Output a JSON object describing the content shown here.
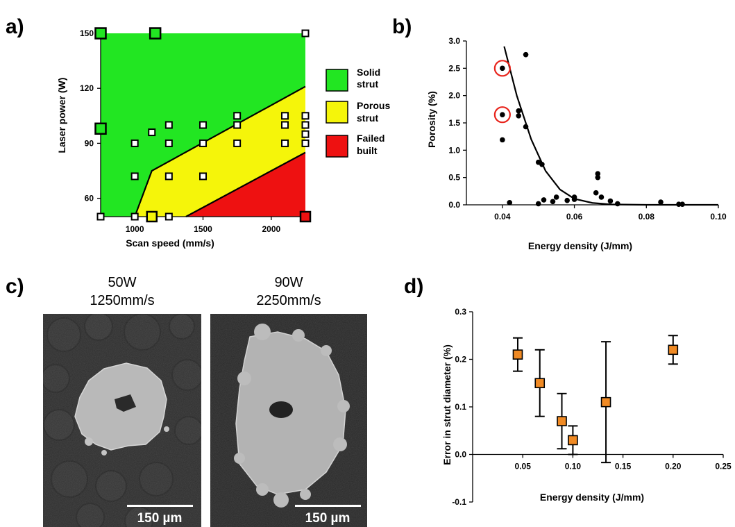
{
  "panels": {
    "a": "a)",
    "b": "b)",
    "c": "c)",
    "d": "d)"
  },
  "colors": {
    "solid": "#22e622",
    "porous": "#f5f50a",
    "failed": "#ee1111",
    "marker_d": "#f08a24",
    "highlight": "#e8231b"
  },
  "chart_data": [
    {
      "panel": "a",
      "type": "scatter",
      "xlabel": "Scan speed (mm/s)",
      "ylabel": "Laser power (W)",
      "xlim": [
        750,
        2250
      ],
      "ylim": [
        50,
        150
      ],
      "xticks": [
        1000,
        1500,
        2000
      ],
      "yticks": [
        60,
        90,
        120,
        150
      ],
      "regions": [
        {
          "name": "Solid strut",
          "color": "#22e622"
        },
        {
          "name": "Porous strut",
          "color": "#f5f50a"
        },
        {
          "name": "Failed built",
          "color": "#ee1111"
        }
      ],
      "legend": [
        {
          "label_line1": "Solid",
          "label_line2": "strut",
          "color": "#22e622"
        },
        {
          "label_line1": "Porous",
          "label_line2": "strut",
          "color": "#f5f50a"
        },
        {
          "label_line1": "Failed",
          "label_line2": "built",
          "color": "#ee1111"
        }
      ],
      "boundaries": {
        "solid_porous": [
          [
            1000,
            50
          ],
          [
            1125,
            75
          ],
          [
            2250,
            121
          ]
        ],
        "porous_failed": [
          [
            1375,
            50
          ],
          [
            2250,
            85
          ]
        ]
      },
      "points": [
        {
          "x": 750,
          "y": 150,
          "kind": "solid"
        },
        {
          "x": 1150,
          "y": 150,
          "kind": "solid"
        },
        {
          "x": 750,
          "y": 98,
          "kind": "solid"
        },
        {
          "x": 2250,
          "y": 150,
          "kind": "open"
        },
        {
          "x": 750,
          "y": 50,
          "kind": "open"
        },
        {
          "x": 1000,
          "y": 90,
          "kind": "open"
        },
        {
          "x": 1000,
          "y": 72,
          "kind": "open"
        },
        {
          "x": 1000,
          "y": 50,
          "kind": "open"
        },
        {
          "x": 1125,
          "y": 96,
          "kind": "open"
        },
        {
          "x": 1250,
          "y": 100,
          "kind": "open"
        },
        {
          "x": 1250,
          "y": 90,
          "kind": "open"
        },
        {
          "x": 1250,
          "y": 72,
          "kind": "open"
        },
        {
          "x": 1250,
          "y": 50,
          "kind": "open"
        },
        {
          "x": 1125,
          "y": 50,
          "kind": "porous"
        },
        {
          "x": 1500,
          "y": 100,
          "kind": "open"
        },
        {
          "x": 1500,
          "y": 90,
          "kind": "open"
        },
        {
          "x": 1500,
          "y": 72,
          "kind": "open"
        },
        {
          "x": 1750,
          "y": 105,
          "kind": "open"
        },
        {
          "x": 1750,
          "y": 100,
          "kind": "open"
        },
        {
          "x": 1750,
          "y": 90,
          "kind": "open"
        },
        {
          "x": 2100,
          "y": 105,
          "kind": "open"
        },
        {
          "x": 2100,
          "y": 100,
          "kind": "open"
        },
        {
          "x": 2100,
          "y": 90,
          "kind": "open"
        },
        {
          "x": 2250,
          "y": 105,
          "kind": "open"
        },
        {
          "x": 2250,
          "y": 100,
          "kind": "open"
        },
        {
          "x": 2250,
          "y": 95,
          "kind": "open"
        },
        {
          "x": 2250,
          "y": 90,
          "kind": "open"
        },
        {
          "x": 2250,
          "y": 50,
          "kind": "failed"
        }
      ]
    },
    {
      "panel": "b",
      "type": "scatter",
      "xlabel": "Energy density (J/mm)",
      "ylabel": "Porosity (%)",
      "xlim": [
        0.03,
        0.1
      ],
      "ylim": [
        0,
        3.0
      ],
      "xticks": [
        0.04,
        0.06,
        0.08,
        0.1
      ],
      "xticklabels": [
        "0.04",
        "0.06",
        "0.08",
        "0.10"
      ],
      "yticks": [
        0,
        0.5,
        1.0,
        1.5,
        2.0,
        2.5,
        3.0
      ],
      "yticklabels": [
        "0.0",
        "0.5",
        "1.0",
        "1.5",
        "2.0",
        "2.5",
        "3.0"
      ],
      "points": [
        {
          "x": 0.04,
          "y": 2.5,
          "highlight": true
        },
        {
          "x": 0.04,
          "y": 1.65,
          "highlight": true
        },
        {
          "x": 0.04,
          "y": 1.19
        },
        {
          "x": 0.042,
          "y": 0.04
        },
        {
          "x": 0.0445,
          "y": 1.72
        },
        {
          "x": 0.0445,
          "y": 1.63
        },
        {
          "x": 0.0465,
          "y": 2.75
        },
        {
          "x": 0.0465,
          "y": 1.43
        },
        {
          "x": 0.05,
          "y": 0.78
        },
        {
          "x": 0.051,
          "y": 0.74
        },
        {
          "x": 0.05,
          "y": 0.02
        },
        {
          "x": 0.0515,
          "y": 0.09
        },
        {
          "x": 0.054,
          "y": 0.06
        },
        {
          "x": 0.055,
          "y": 0.14
        },
        {
          "x": 0.058,
          "y": 0.08
        },
        {
          "x": 0.06,
          "y": 0.1
        },
        {
          "x": 0.06,
          "y": 0.14
        },
        {
          "x": 0.066,
          "y": 0.22
        },
        {
          "x": 0.0665,
          "y": 0.5
        },
        {
          "x": 0.0665,
          "y": 0.57
        },
        {
          "x": 0.0675,
          "y": 0.14
        },
        {
          "x": 0.07,
          "y": 0.07
        },
        {
          "x": 0.072,
          "y": 0.02
        },
        {
          "x": 0.084,
          "y": 0.05
        },
        {
          "x": 0.089,
          "y": 0.01
        },
        {
          "x": 0.09,
          "y": 0.01
        }
      ],
      "fit_curve": [
        [
          0.0405,
          2.9
        ],
        [
          0.044,
          2.0
        ],
        [
          0.048,
          1.2
        ],
        [
          0.052,
          0.62
        ],
        [
          0.056,
          0.28
        ],
        [
          0.06,
          0.11
        ],
        [
          0.065,
          0.035
        ],
        [
          0.07,
          0.008
        ],
        [
          0.08,
          0.0
        ],
        [
          0.09,
          0.0
        ],
        [
          0.1,
          0.0
        ]
      ]
    },
    {
      "panel": "d",
      "type": "scatter",
      "xlabel": "Energy density (J/mm)",
      "ylabel": "Error in strut diameter (%)",
      "xlim": [
        0,
        0.25
      ],
      "ylim": [
        -0.1,
        0.3
      ],
      "xticks": [
        0.05,
        0.1,
        0.15,
        0.2,
        0.25
      ],
      "xticklabels": [
        "0.05",
        "0.10",
        "0.15",
        "0.20",
        "0.25"
      ],
      "yticks": [
        -0.1,
        0.0,
        0.1,
        0.2,
        0.3
      ],
      "yticklabels": [
        "-0.1",
        "0.0",
        "0.1",
        "0.2",
        "0.3"
      ],
      "points": [
        {
          "x": 0.045,
          "y": 0.21,
          "low": 0.175,
          "high": 0.245
        },
        {
          "x": 0.067,
          "y": 0.15,
          "low": 0.08,
          "high": 0.22
        },
        {
          "x": 0.089,
          "y": 0.07,
          "low": 0.012,
          "high": 0.128
        },
        {
          "x": 0.1,
          "y": 0.03,
          "low": 0.0,
          "high": 0.06
        },
        {
          "x": 0.133,
          "y": 0.11,
          "low": -0.017,
          "high": 0.237
        },
        {
          "x": 0.2,
          "y": 0.22,
          "low": 0.19,
          "high": 0.25
        }
      ]
    }
  ],
  "micrographs": [
    {
      "caption_line1": "50W",
      "caption_line2": "1250mm/s",
      "scalebar": "150 µm"
    },
    {
      "caption_line1": "90W",
      "caption_line2": "2250mm/s",
      "scalebar": "150 µm"
    }
  ]
}
